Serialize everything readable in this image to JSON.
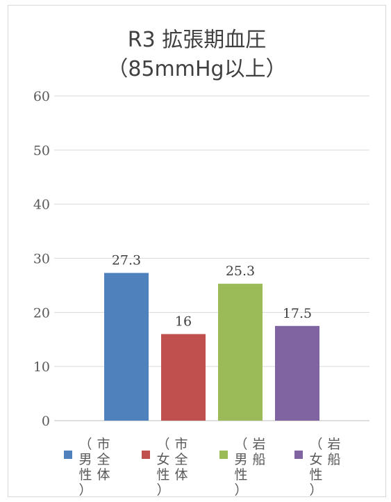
{
  "chart_data": {
    "type": "bar",
    "title_line1": "R3 拡張期血圧",
    "title_line2": "（85mmHg以上）",
    "categories": [
      {
        "line1": "市全体",
        "line2": "（男性）"
      },
      {
        "line1": "市全体",
        "line2": "（女性）"
      },
      {
        "line1": "岩船",
        "line2": "（男性）"
      },
      {
        "line1": "岩船",
        "line2": "（女性）"
      }
    ],
    "values": [
      27.3,
      16,
      25.3,
      17.5
    ],
    "value_labels": [
      "27.3",
      "16",
      "25.3",
      "17.5"
    ],
    "colors": [
      "#4f81bd",
      "#c0504d",
      "#9bbb59",
      "#8064a2"
    ],
    "ylim": [
      0,
      60
    ],
    "yticks": [
      "0",
      "10",
      "20",
      "30",
      "40",
      "50",
      "60"
    ],
    "grid": true,
    "legend_position": "bottom"
  }
}
